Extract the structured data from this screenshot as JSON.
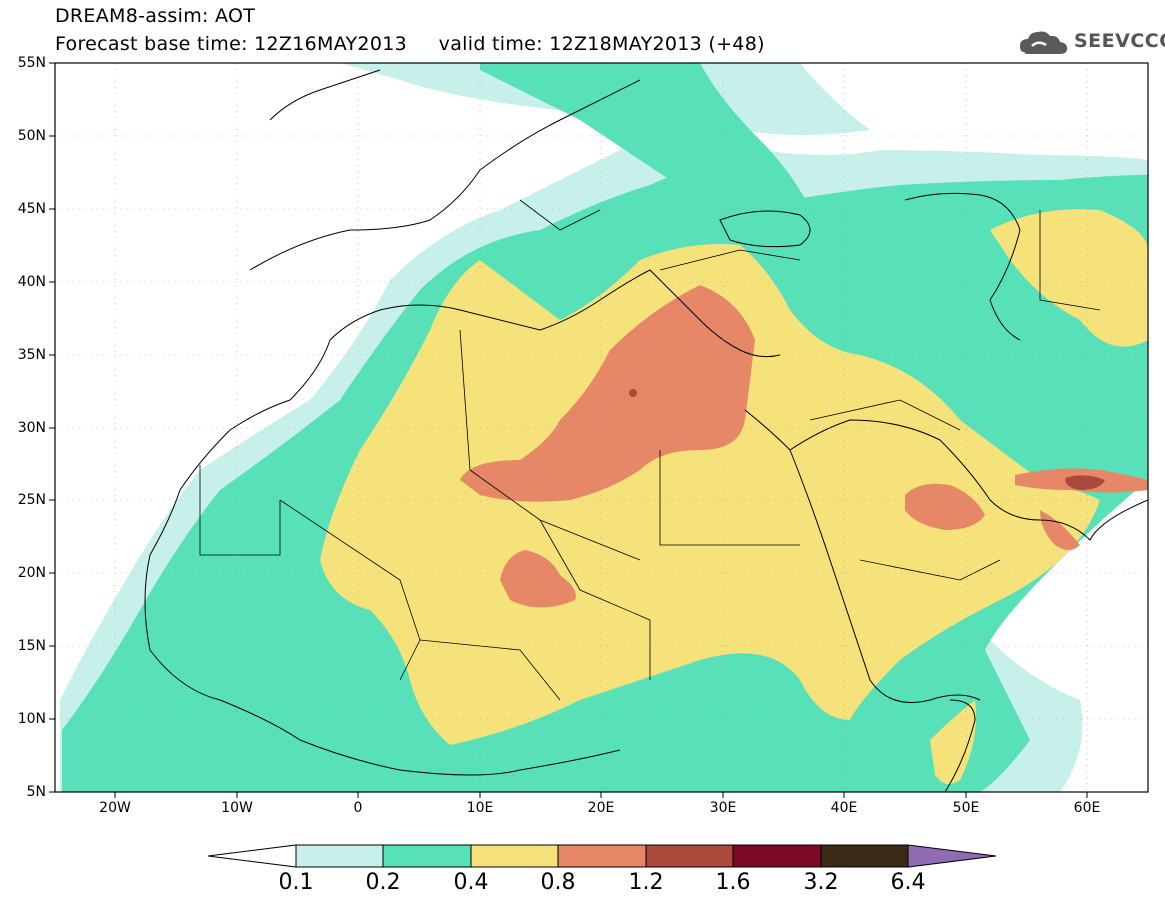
{
  "header": {
    "title_line1": "DREAM8-assim: AOT",
    "title_line2": "Forecast base time: 12Z16MAY2013     valid time: 12Z18MAY2013 (+48)",
    "logo_text": "SEEVCCC"
  },
  "axes": {
    "lat_labels": [
      "55N",
      "50N",
      "45N",
      "40N",
      "35N",
      "30N",
      "25N",
      "20N",
      "15N",
      "10N",
      "5N"
    ],
    "lon_labels": [
      "20W",
      "10W",
      "0",
      "10E",
      "20E",
      "30E",
      "40E",
      "50E",
      "60E"
    ],
    "lon_range": [
      -25,
      65
    ],
    "lat_range": [
      5,
      55
    ],
    "grid": "dotted"
  },
  "colorbar": {
    "labels": [
      "0.1",
      "0.2",
      "0.4",
      "0.8",
      "1.2",
      "1.6",
      "3.2",
      "6.4"
    ],
    "colors": [
      "#ffffff",
      "#c8f0ea",
      "#58e0b8",
      "#f5e27a",
      "#e68868",
      "#a94a3c",
      "#7a0a26",
      "#3a2a18",
      "#8f6cb0"
    ]
  }
}
